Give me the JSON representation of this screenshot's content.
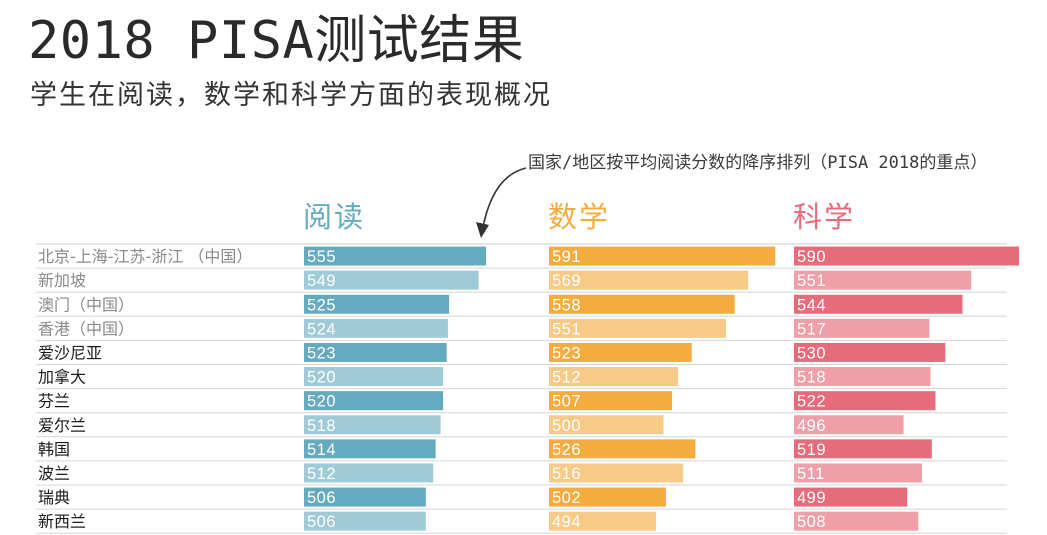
{
  "header": {
    "title": "2018 PISA测试结果",
    "subtitle": "学生在阅读，数学和科学方面的表现概况"
  },
  "annotation": {
    "text": "国家/地区按平均阅读分数的降序排列（PISA 2018的重点）"
  },
  "chart_data": {
    "type": "bar",
    "orientation": "horizontal",
    "grid": false,
    "legend": "none",
    "categories": [
      "北京-上海-江苏-浙江 （中国）",
      "新加坡",
      "澳门（中国）",
      "香港（中国）",
      "爱沙尼亚",
      "加拿大",
      "芬兰",
      "爱尔兰",
      "韩国",
      "波兰",
      "瑞典",
      "新西兰"
    ],
    "category_colors": [
      "#8a8a8a",
      "#8a8a8a",
      "#8a8a8a",
      "#8a8a8a",
      "#1a1a1a",
      "#1a1a1a",
      "#1a1a1a",
      "#1a1a1a",
      "#1a1a1a",
      "#1a1a1a",
      "#1a1a1a",
      "#1a1a1a"
    ],
    "series": [
      {
        "name": "阅读",
        "color_dark": "#65abbf",
        "color_light": "#9fcbd8",
        "values": [
          555,
          549,
          525,
          524,
          523,
          520,
          520,
          518,
          514,
          512,
          506,
          506
        ]
      },
      {
        "name": "数学",
        "color_dark": "#f5ac3e",
        "color_light": "#f9ca86",
        "values": [
          591,
          569,
          558,
          551,
          523,
          512,
          507,
          500,
          526,
          516,
          502,
          494
        ]
      },
      {
        "name": "科学",
        "color_dark": "#e66b7b",
        "color_light": "#f09ea8",
        "values": [
          590,
          551,
          544,
          517,
          530,
          518,
          522,
          496,
          519,
          511,
          499,
          508
        ]
      }
    ],
    "xlim": [
      0,
      600
    ]
  }
}
